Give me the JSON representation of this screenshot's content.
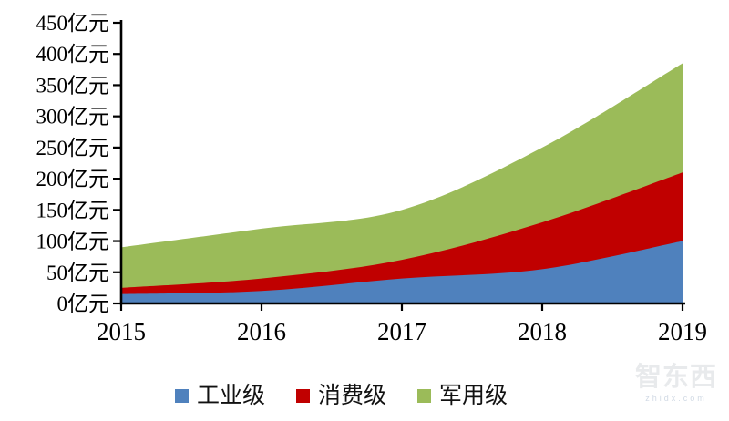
{
  "chart_data": {
    "type": "area",
    "variant": "stacked-smoothed",
    "title": "",
    "xlabel": "",
    "ylabel": "",
    "categories": [
      "2015",
      "2016",
      "2017",
      "2018",
      "2019"
    ],
    "series": [
      {
        "name": "工业级",
        "color": "#4F81BD",
        "values": [
          15,
          20,
          40,
          55,
          100
        ]
      },
      {
        "name": "消费级",
        "color": "#C00000",
        "values": [
          10,
          20,
          30,
          75,
          110
        ]
      },
      {
        "name": "军用级",
        "color": "#9BBB59",
        "values": [
          65,
          80,
          80,
          120,
          175
        ]
      }
    ],
    "cumulative_tops": {
      "工业级": [
        15,
        20,
        40,
        55,
        100
      ],
      "消费级": [
        25,
        40,
        70,
        130,
        210
      ],
      "军用级": [
        90,
        120,
        150,
        250,
        385
      ]
    },
    "ylim": [
      0,
      450
    ],
    "y_tick_step": 50,
    "y_unit_suffix": "亿元",
    "y_tick_labels": [
      "0亿元",
      "50亿元",
      "100亿元",
      "150亿元",
      "200亿元",
      "250亿元",
      "300亿元",
      "350亿元",
      "400亿元",
      "450亿元"
    ],
    "grid": false,
    "legend_position": "bottom",
    "axis_color": "#000000"
  },
  "legend": {
    "items": [
      {
        "label": "工业级",
        "color": "#4F81BD"
      },
      {
        "label": "消费级",
        "color": "#C00000"
      },
      {
        "label": "军用级",
        "color": "#9BBB59"
      }
    ]
  },
  "watermark": {
    "title": "智东西",
    "subtitle": "zhidx.com"
  }
}
